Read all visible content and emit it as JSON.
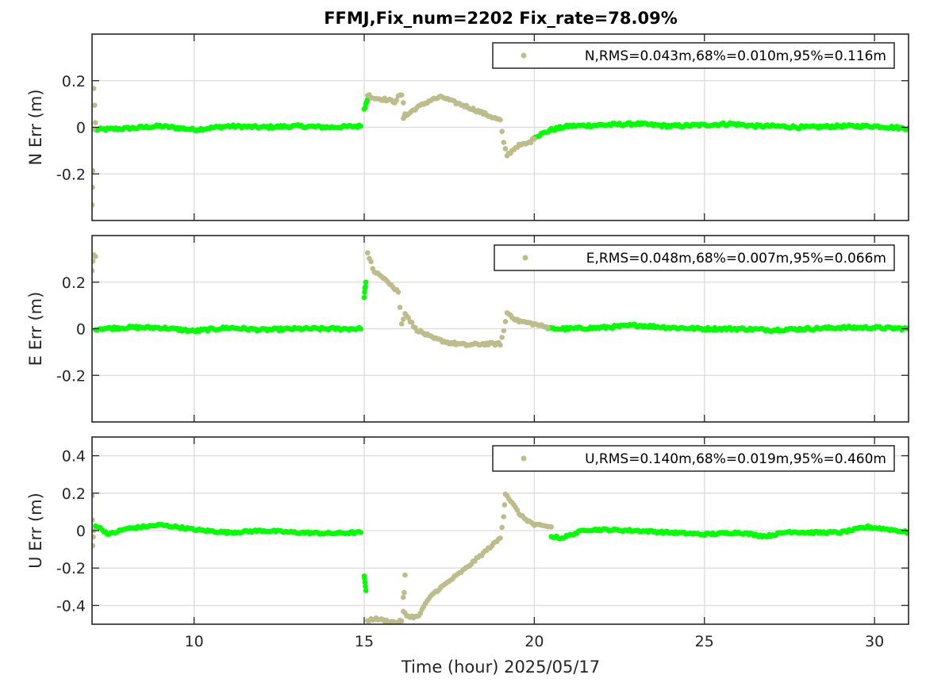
{
  "figure": {
    "title": "FFMJ,Fix_num=2202 Fix_rate=78.09%",
    "xlabel": "Time (hour)  2025/05/17"
  },
  "colors": {
    "fixed": "#00ff00",
    "float": "#bdbc8b",
    "grid": "#dcdcdc",
    "axes": "#262626"
  },
  "chart_data": [
    {
      "type": "scatter",
      "name": "north",
      "ylabel": "N Err (m)",
      "xlim": [
        7,
        31
      ],
      "ylim": [
        -0.4,
        0.4
      ],
      "xticks": [
        10,
        15,
        20,
        25,
        30
      ],
      "yticks": [
        -0.2,
        0,
        0.2
      ],
      "ytick_labels": [
        "-0.2",
        "0",
        "0.2"
      ],
      "grid": true,
      "legend": {
        "placement": "top-right",
        "label": "N,RMS=0.043m,68%=0.010m,95%=0.116m"
      },
      "fixed_segments": [
        {
          "x": [
            7.1,
            8,
            9,
            10,
            11,
            12,
            13,
            14,
            14.9
          ],
          "y": [
            -0.01,
            -0.005,
            0.005,
            -0.01,
            0.005,
            0,
            0.005,
            0,
            0.005
          ]
        },
        {
          "x": [
            15.0,
            15.05,
            15.1
          ],
          "y": [
            0.08,
            0.1,
            0.12
          ]
        },
        {
          "x": [
            20.0,
            20.2,
            20.5,
            21,
            22,
            23,
            24,
            25,
            25.8,
            26.5,
            27,
            28,
            29,
            30,
            31
          ],
          "y": [
            -0.04,
            -0.03,
            -0.01,
            0.005,
            0.01,
            0.015,
            0.005,
            0.01,
            0.015,
            0.005,
            0.005,
            0,
            0.005,
            0.005,
            -0.005
          ]
        }
      ],
      "float_segments": [
        {
          "x": [
            7.0,
            7.02,
            7.05,
            7.1
          ],
          "y": [
            -0.33,
            -0.19,
            0.17,
            0.02
          ]
        },
        {
          "x": [
            15.1,
            15.3,
            15.6,
            15.9,
            16.0,
            16.1,
            16.2,
            16.15,
            16.5,
            17.0,
            17.3,
            17.6,
            18.0,
            18.5,
            19.0,
            19.1,
            19.2,
            19.5,
            19.8,
            20.0
          ],
          "y": [
            0.14,
            0.125,
            0.12,
            0.11,
            0.13,
            0.14,
            0.06,
            0.04,
            0.08,
            0.12,
            0.13,
            0.11,
            0.09,
            0.06,
            0.03,
            -0.07,
            -0.12,
            -0.08,
            -0.07,
            -0.05
          ]
        }
      ]
    },
    {
      "type": "scatter",
      "name": "east",
      "ylabel": "E Err (m)",
      "xlim": [
        7,
        31
      ],
      "ylim": [
        -0.4,
        0.4
      ],
      "xticks": [
        10,
        15,
        20,
        25,
        30
      ],
      "yticks": [
        -0.2,
        0,
        0.2
      ],
      "ytick_labels": [
        "-0.2",
        "0",
        "0.2"
      ],
      "grid": true,
      "legend": {
        "placement": "top-right",
        "label": "E,RMS=0.048m,68%=0.007m,95%=0.066m"
      },
      "fixed_segments": [
        {
          "x": [
            7.1,
            8,
            9,
            10,
            11,
            12,
            13,
            14,
            14.9
          ],
          "y": [
            0,
            0.005,
            0.005,
            -0.01,
            0.005,
            -0.005,
            0,
            0,
            0
          ]
        },
        {
          "x": [
            15.0,
            15.02,
            15.05
          ],
          "y": [
            0.14,
            0.17,
            0.2
          ]
        },
        {
          "x": [
            20.4,
            21,
            22,
            23,
            24,
            25,
            26,
            27,
            28,
            29,
            30,
            31
          ],
          "y": [
            0,
            0,
            0.005,
            0.015,
            0.005,
            0,
            0,
            -0.005,
            0,
            0.005,
            0.005,
            0
          ]
        }
      ],
      "float_segments": [
        {
          "x": [
            7.0,
            7.05,
            7.1
          ],
          "y": [
            0.25,
            0.32,
            0.31
          ]
        },
        {
          "x": [
            15.1,
            15.3,
            15.6,
            15.9,
            16.0,
            16.1,
            16.2,
            16.5,
            17.0,
            17.5,
            18.0,
            18.5,
            19.0,
            19.1,
            19.2,
            19.5,
            20.0,
            20.4
          ],
          "y": [
            0.33,
            0.24,
            0.22,
            0.17,
            0.16,
            0.02,
            0.07,
            0.0,
            -0.04,
            -0.06,
            -0.07,
            -0.065,
            -0.065,
            -0.01,
            0.07,
            0.035,
            0.02,
            0.005
          ]
        }
      ]
    },
    {
      "type": "scatter",
      "name": "up",
      "ylabel": "U Err (m)",
      "xlim": [
        7,
        31
      ],
      "ylim": [
        -0.5,
        0.5
      ],
      "xticks": [
        10,
        15,
        20,
        25,
        30
      ],
      "xtick_labels": [
        "10",
        "15",
        "20",
        "25",
        "30"
      ],
      "yticks": [
        -0.4,
        -0.2,
        0,
        0.2,
        0.4
      ],
      "ytick_labels": [
        "-0.4",
        "-0.2",
        "0",
        "0.2",
        "0.4"
      ],
      "grid": true,
      "legend": {
        "placement": "top-right",
        "label": "U,RMS=0.140m,68%=0.019m,95%=0.460m"
      },
      "fixed_segments": [
        {
          "x": [
            7.1,
            7.5,
            8,
            8.5,
            9,
            9.5,
            10,
            11,
            12,
            13,
            14,
            14.9
          ],
          "y": [
            0.03,
            -0.02,
            0.01,
            0.02,
            0.03,
            0.02,
            0.005,
            -0.01,
            0.0,
            -0.01,
            -0.015,
            -0.01
          ]
        },
        {
          "x": [
            15.0,
            15.02,
            15.05
          ],
          "y": [
            -0.24,
            -0.28,
            -0.32
          ]
        },
        {
          "x": [
            20.5,
            20.8,
            21.5,
            22,
            23,
            24,
            25,
            26,
            26.8,
            27.5,
            28,
            29,
            29.8,
            30.5,
            31
          ],
          "y": [
            -0.03,
            -0.04,
            0.005,
            0.005,
            0.0,
            -0.01,
            -0.02,
            -0.01,
            -0.03,
            -0.005,
            -0.01,
            -0.01,
            0.02,
            0.005,
            -0.01
          ]
        }
      ],
      "float_segments": [
        {
          "x": [
            7.0,
            7.02,
            7.05
          ],
          "y": [
            0.19,
            -0.08,
            0.0
          ]
        },
        {
          "x": [
            15.1,
            15.3,
            15.6,
            15.9,
            16.0,
            16.1,
            16.2,
            16.15,
            16.3,
            16.6,
            16.7,
            17.0,
            17.5,
            18.0,
            18.5,
            19.0,
            19.1,
            19.15,
            19.3,
            19.6,
            20.0,
            20.5
          ],
          "y": [
            -0.48,
            -0.47,
            -0.48,
            -0.49,
            -0.49,
            -0.48,
            -0.24,
            -0.43,
            -0.46,
            -0.46,
            -0.42,
            -0.34,
            -0.27,
            -0.2,
            -0.12,
            -0.04,
            0.08,
            0.2,
            0.16,
            0.08,
            0.03,
            0.02
          ]
        }
      ]
    }
  ]
}
